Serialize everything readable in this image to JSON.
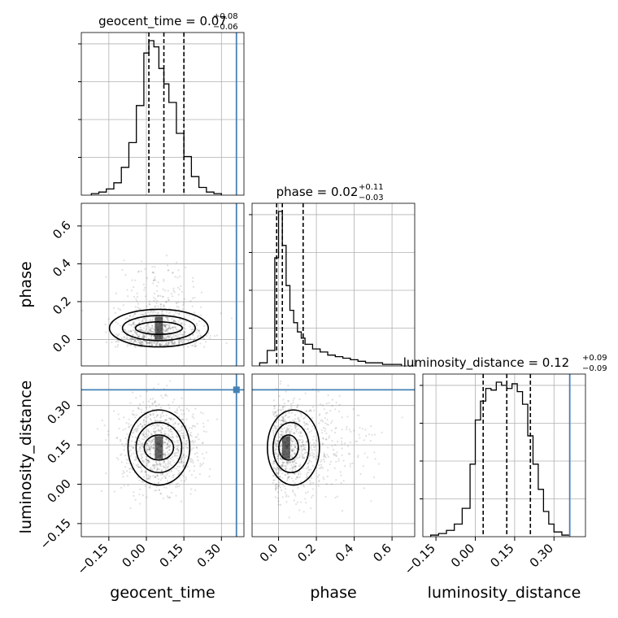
{
  "chart_data": {
    "type": "corner",
    "parameters": [
      "geocent_time",
      "phase",
      "luminosity_distance"
    ],
    "truths": {
      "geocent_time": 0.36,
      "luminosity_distance": 0.36
    },
    "titles": [
      {
        "param": "geocent_time",
        "text": "geocent_time = 0.07",
        "plus": "+0.08",
        "minus": "−0.06"
      },
      {
        "param": "phase",
        "text": "phase = 0.02",
        "plus": "+0.11",
        "minus": "−0.03"
      },
      {
        "param": "luminosity_distance",
        "text": "luminosity_distance = 0.12",
        "plus": "+0.09",
        "minus": "−0.09"
      }
    ],
    "axis_labels": {
      "x": [
        "geocent_time",
        "phase",
        "luminosity_distance"
      ],
      "y": [
        "phase",
        "luminosity_distance"
      ]
    },
    "ranges": {
      "geocent_time": [
        -0.26,
        0.39
      ],
      "phase": [
        -0.14,
        0.72
      ],
      "luminosity_distance": [
        -0.2,
        0.42
      ]
    },
    "ticks": {
      "geocent_time": {
        "values": [
          -0.15,
          0.0,
          0.15,
          0.3
        ],
        "labels": [
          "−0.15",
          "0.00",
          "0.15",
          "0.30"
        ]
      },
      "phase": {
        "values": [
          0.0,
          0.2,
          0.4,
          0.6
        ],
        "labels": [
          "0.0",
          "0.2",
          "0.4",
          "0.6"
        ]
      },
      "luminosity_distance": {
        "values": [
          -0.15,
          0.0,
          0.15,
          0.3
        ],
        "labels": [
          "−0.15",
          "0.00",
          "0.15",
          "0.30"
        ]
      }
    },
    "histograms": {
      "geocent_time": {
        "bin_edges": [
          -0.22,
          -0.19,
          -0.16,
          -0.13,
          -0.1,
          -0.07,
          -0.04,
          -0.01,
          0.01,
          0.03,
          0.05,
          0.07,
          0.09,
          0.12,
          0.15,
          0.18,
          0.21,
          0.24,
          0.27,
          0.3
        ],
        "counts": [
          1,
          2,
          4,
          8,
          18,
          34,
          58,
          92,
          100,
          96,
          82,
          72,
          60,
          40,
          25,
          12,
          5,
          2,
          1
        ],
        "quantiles": [
          0.01,
          0.07,
          0.15
        ]
      },
      "phase": {
        "bin_edges": [
          -0.1,
          -0.06,
          -0.02,
          0.0,
          0.02,
          0.04,
          0.06,
          0.08,
          0.1,
          0.12,
          0.14,
          0.18,
          0.22,
          0.26,
          0.3,
          0.34,
          0.38,
          0.42,
          0.46,
          0.5,
          0.55,
          0.6,
          0.65
        ],
        "counts": [
          2,
          10,
          70,
          100,
          78,
          52,
          36,
          28,
          22,
          18,
          14,
          11,
          9,
          7,
          6,
          5,
          4,
          3,
          2,
          2,
          1,
          1
        ],
        "quantiles": [
          -0.01,
          0.02,
          0.13
        ]
      },
      "luminosity_distance": {
        "bin_edges": [
          -0.17,
          -0.14,
          -0.11,
          -0.08,
          -0.05,
          -0.02,
          0.0,
          0.02,
          0.04,
          0.06,
          0.08,
          0.1,
          0.12,
          0.14,
          0.16,
          0.18,
          0.2,
          0.22,
          0.24,
          0.26,
          0.28,
          0.3,
          0.33,
          0.36
        ],
        "counts": [
          1,
          2,
          4,
          8,
          18,
          46,
          74,
          86,
          94,
          93,
          98,
          96,
          94,
          97,
          92,
          84,
          64,
          46,
          30,
          16,
          8,
          3,
          1
        ],
        "quantiles": [
          0.03,
          0.12,
          0.21
        ]
      }
    }
  }
}
